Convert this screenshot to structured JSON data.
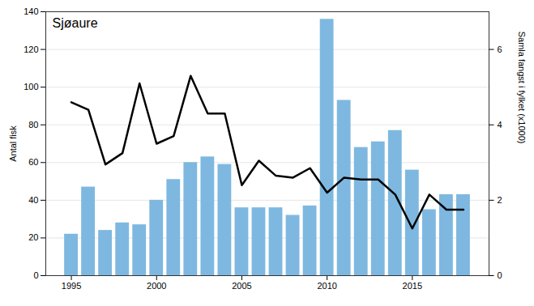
{
  "chart_data": {
    "type": "bar",
    "title": "Sjøaure",
    "x": [
      1995,
      1996,
      1997,
      1998,
      1999,
      2000,
      2001,
      2002,
      2003,
      2004,
      2005,
      2006,
      2007,
      2008,
      2009,
      2010,
      2011,
      2012,
      2013,
      2014,
      2015,
      2016,
      2017,
      2018
    ],
    "series": [
      {
        "type": "bar",
        "color": "#7eb8e0",
        "values": [
          22,
          47,
          24,
          28,
          27,
          40,
          51,
          60,
          63,
          59,
          36,
          36,
          36,
          32,
          37,
          136,
          93,
          68,
          71,
          77,
          56,
          35,
          43,
          43
        ]
      },
      {
        "type": "line",
        "color": "#000000",
        "values": [
          92,
          88,
          59,
          65,
          102,
          70,
          74,
          106,
          86,
          86,
          48,
          61,
          53,
          52,
          57,
          44,
          52,
          51,
          51,
          43,
          25,
          43,
          35,
          35
        ]
      }
    ],
    "ylabel": "Antal fisk",
    "y2label": "Samla fangst i fylket (x1000)",
    "xlim": [
      1993.5,
      2019.5
    ],
    "xticks": [
      1995,
      2000,
      2005,
      2010,
      2015
    ],
    "ylim": [
      0,
      140
    ],
    "yticks": [
      0,
      20,
      40,
      60,
      80,
      100,
      120,
      140
    ],
    "y2lim": [
      0,
      7
    ],
    "y2ticks": [
      0,
      2,
      4,
      6
    ],
    "grid": true
  }
}
